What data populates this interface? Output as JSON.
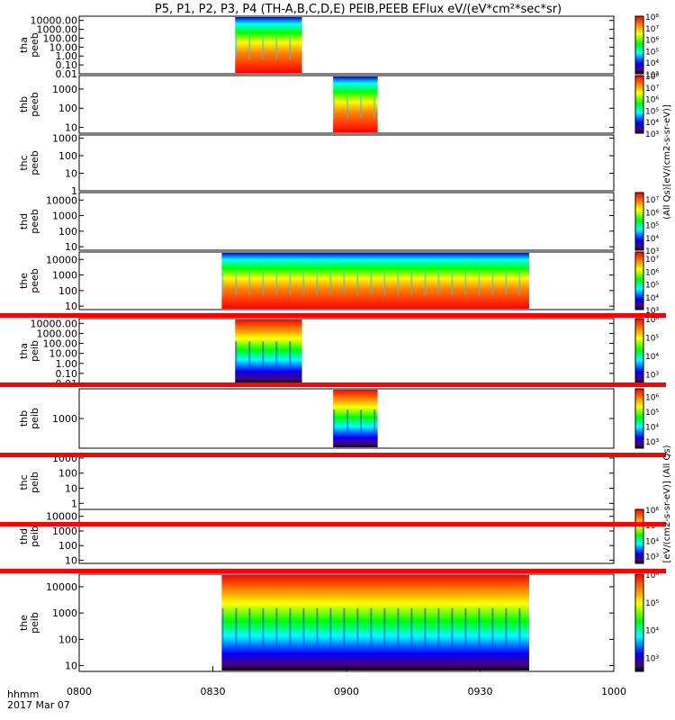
{
  "chart_data": {
    "type": "heatmap",
    "title": "P5, P1, P2, P3, P4 (TH-A,B,C,D,E) PEIB,PEEB EFlux eV/(eV*cm²*sec*sr)",
    "x_axis": {
      "label": "hhmm",
      "date": "2017 Mar 07",
      "ticks": [
        "0800",
        "0830",
        "0900",
        "0930",
        "1000"
      ],
      "range": [
        "08:00",
        "10:00"
      ]
    },
    "colorbar_label_e": "(All Qs)[eV/(cm2-s-sr-eV)]",
    "colorbar_label_i": "[eV/(cm2-s-sr-eV)] (All Qs)",
    "panels": [
      {
        "id": "tha_peeb",
        "ylabel": [
          "tha",
          "peeb"
        ],
        "yticks": [
          "10000.00",
          "1000.00",
          "100.00",
          "10.00",
          "1.00",
          "0.10",
          "0.01"
        ],
        "ylog_range": [
          0.01,
          30000
        ],
        "data_start": "08:35",
        "data_end": "08:50",
        "cbar_ticks": [
          "10³",
          "10⁴",
          "10⁵",
          "10⁶",
          "10⁷",
          "10⁸"
        ],
        "cbar_log": [
          3,
          8
        ]
      },
      {
        "id": "thb_peeb",
        "ylabel": [
          "thb",
          "peeb"
        ],
        "yticks": [
          "1000",
          "100",
          "10"
        ],
        "ylog_range": [
          5,
          5000
        ],
        "data_start": "08:57",
        "data_end": "09:07",
        "cbar_ticks": [
          "10³",
          "10⁴",
          "10⁵",
          "10⁶",
          "10⁷",
          "10⁸"
        ],
        "cbar_log": [
          3,
          8
        ]
      },
      {
        "id": "thc_peeb",
        "ylabel": [
          "thc",
          "peeb"
        ],
        "yticks": [
          "1000",
          "100",
          "10",
          "1"
        ],
        "ylog_range": [
          1,
          1500
        ],
        "data_start": null,
        "data_end": null,
        "cbar_ticks": [],
        "cbar_log": null
      },
      {
        "id": "thd_peeb",
        "ylabel": [
          "thd",
          "peeb"
        ],
        "yticks": [
          "10000",
          "1000",
          "100",
          "10"
        ],
        "ylog_range": [
          6,
          30000
        ],
        "data_start": null,
        "data_end": null,
        "cbar_ticks": [
          "10³",
          "10⁴",
          "10⁵",
          "10⁶",
          "10⁷"
        ],
        "cbar_log": [
          3,
          7.5
        ]
      },
      {
        "id": "the_peeb",
        "ylabel": [
          "the",
          "peeb"
        ],
        "yticks": [
          "10000",
          "1000",
          "100",
          "10"
        ],
        "ylog_range": [
          6,
          30000
        ],
        "data_start": "08:32",
        "data_end": "09:41",
        "cbar_ticks": [
          "10³",
          "10⁴",
          "10⁵",
          "10⁶",
          "10⁷"
        ],
        "cbar_log": [
          3,
          7.5
        ]
      },
      {
        "id": "tha_peib",
        "ylabel": [
          "tha",
          "peib"
        ],
        "yticks": [
          "10000.00",
          "1000.00",
          "100.00",
          "10.00",
          "1.00",
          "0.10",
          "0.01"
        ],
        "ylog_range": [
          0.01,
          30000
        ],
        "data_start": "08:35",
        "data_end": "08:50",
        "cbar_ticks": [
          "10³",
          "10⁴",
          "10⁵",
          "10⁶"
        ],
        "cbar_log": [
          2.5,
          6
        ]
      },
      {
        "id": "thb_peib",
        "ylabel": [
          "thb",
          "peib"
        ],
        "yticks": [
          "1000"
        ],
        "ylog_range": [
          100,
          10000
        ],
        "data_start": "08:57",
        "data_end": "09:07",
        "cbar_ticks": [
          "10³",
          "10⁴",
          "10⁵",
          "10⁶"
        ],
        "cbar_log": [
          2.5,
          6.5
        ]
      },
      {
        "id": "thc_peib",
        "ylabel": [
          "thc",
          "peib"
        ],
        "yticks": [
          "1000",
          "100",
          "10",
          "1"
        ],
        "ylog_range": [
          0.4,
          1500
        ],
        "data_start": null,
        "data_end": null,
        "cbar_ticks": [],
        "cbar_log": null
      },
      {
        "id": "thd_peib",
        "ylabel": [
          "thd",
          "peib"
        ],
        "yticks": [
          "10000",
          "1000",
          "100",
          "10"
        ],
        "ylog_range": [
          6,
          30000
        ],
        "data_start": null,
        "data_end": null,
        "cbar_ticks": [
          "10³",
          "10⁴",
          "10⁵",
          "10⁶"
        ],
        "cbar_log": [
          2.5,
          6
        ]
      },
      {
        "id": "the_peib",
        "ylabel": [
          "the",
          "peib"
        ],
        "yticks": [
          "10000",
          "1000",
          "100",
          "10"
        ],
        "ylog_range": [
          6,
          30000
        ],
        "data_start": "08:32",
        "data_end": "09:41",
        "cbar_ticks": [
          "10³",
          "10⁴",
          "10⁵",
          "10⁶"
        ],
        "cbar_log": [
          2.5,
          6
        ]
      }
    ],
    "colors": {
      "axis": "#000000",
      "flag_bar": "#ff0000",
      "background": "#ffffff"
    }
  }
}
